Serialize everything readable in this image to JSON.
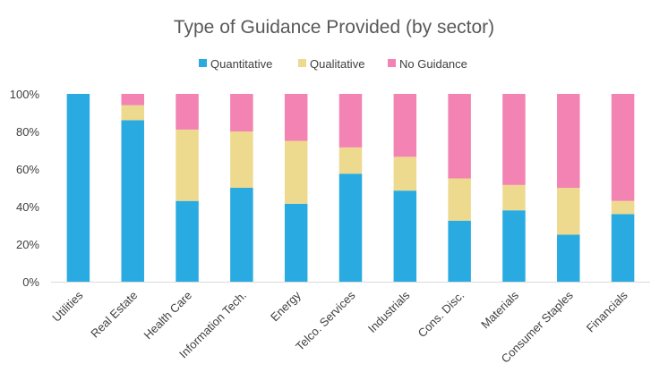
{
  "chart_data": {
    "type": "bar",
    "stacked": true,
    "percent_stacked": true,
    "title": "Type of Guidance Provided (by sector)",
    "xlabel": "",
    "ylabel": "",
    "ylim": [
      0,
      100
    ],
    "yticks": [
      "0%",
      "20%",
      "40%",
      "60%",
      "80%",
      "100%"
    ],
    "ytick_values": [
      0,
      20,
      40,
      60,
      80,
      100
    ],
    "grid": false,
    "legend_position": "top",
    "categories": [
      "Utilities",
      "Real Estate",
      "Health Care",
      "Information Tech.",
      "Energy",
      "Telco. Services",
      "Industrials",
      "Cons. Disc.",
      "Materials",
      "Consumer Staples",
      "Financials"
    ],
    "series": [
      {
        "name": "Quantitative",
        "color": "#29abe2",
        "values": [
          100,
          86,
          43,
          50,
          41.5,
          57.5,
          48.5,
          32.5,
          38,
          25,
          36
        ]
      },
      {
        "name": "Qualitative",
        "color": "#eeda8e",
        "values": [
          0,
          8,
          38,
          30,
          33.5,
          14,
          18,
          22.5,
          13.5,
          25,
          7
        ]
      },
      {
        "name": "No Guidance",
        "color": "#f283b2",
        "values": [
          0,
          6,
          19,
          20,
          25,
          28.5,
          33.5,
          45,
          48.5,
          50,
          57
        ]
      }
    ]
  }
}
